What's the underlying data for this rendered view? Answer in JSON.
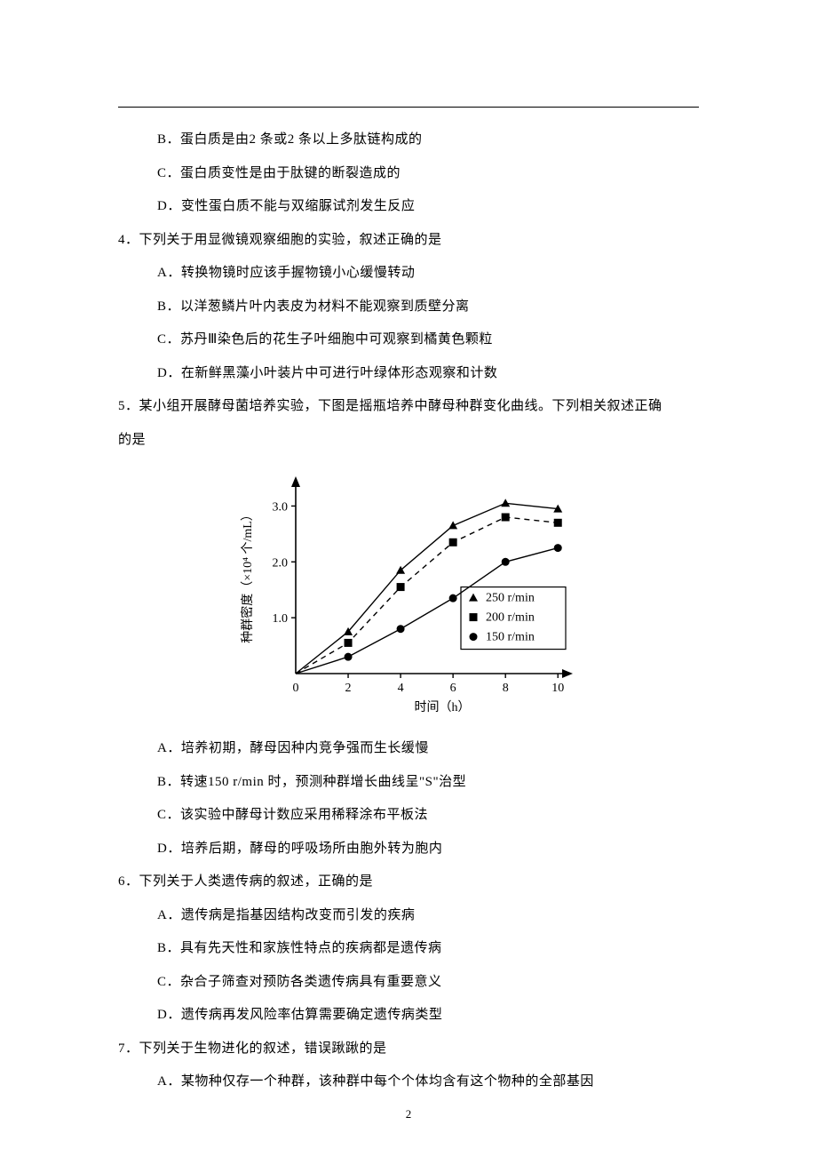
{
  "q3": {
    "options": {
      "B": "B．蛋白质是由2 条或2 条以上多肽链构成的",
      "C": "C．蛋白质变性是由于肽键的断裂造成的",
      "D": "D．变性蛋白质不能与双缩脲试剂发生反应"
    }
  },
  "q4": {
    "stem": "4．下列关于用显微镜观察细胞的实验，叙述正确的是",
    "options": {
      "A": "A．转换物镜时应该手握物镜小心缓慢转动",
      "B": "B．以洋葱鳞片叶内表皮为材料不能观察到质壁分离",
      "C": "C．苏丹Ⅲ染色后的花生子叶细胞中可观察到橘黄色颗粒",
      "D": "D．在新鲜黑藻小叶装片中可进行叶绿体形态观察和计数"
    }
  },
  "q5": {
    "stem1": "5．某小组开展酵母菌培养实验，下图是摇瓶培养中酵母种群变化曲线。下列相关叙述正确",
    "stem2": "的是",
    "options": {
      "A": "A．培养初期，酵母因种内竞争强而生长缓慢",
      "B": "B．转速150 r/min 时，预测种群增长曲线呈\"S\"治型",
      "C": "C．该实验中酵母计数应采用稀释涂布平板法",
      "D": "D．培养后期，酵母的呼吸场所由胞外转为胞内"
    }
  },
  "q6": {
    "stem": "6．下列关于人类遗传病的叙述，正确的是",
    "options": {
      "A": "A．遗传病是指基因结构改变而引发的疾病",
      "B": "B．具有先天性和家族性特点的疾病都是遗传病",
      "C": "C．杂合子筛查对预防各类遗传病具有重要意义",
      "D": "D．遗传病再发风险率估算需要确定遗传病类型"
    }
  },
  "q7": {
    "stem": "7．下列关于生物进化的叙述，错误踿踿的是",
    "options": {
      "A": "A．某物种仅存一个种群，该种群中每个个体均含有这个物种的全部基因"
    }
  },
  "chart": {
    "type": "line",
    "x_label": "时间（h）",
    "y_label": "种群密度（×10⁴ 个/mL）",
    "x_ticks": [
      0,
      2,
      4,
      6,
      8,
      10
    ],
    "y_ticks": [
      1.0,
      2.0,
      3.0
    ],
    "xlim": [
      0,
      10.5
    ],
    "ylim": [
      0,
      3.5
    ],
    "axis_color": "#000000",
    "background": "#ffffff",
    "line_width": 1.4,
    "font_size_axis": 14,
    "font_size_legend": 14,
    "legend": {
      "box_stroke": "#000000",
      "entries": [
        {
          "marker": "triangle",
          "label": "250 r/min"
        },
        {
          "marker": "square",
          "label": "200 r/min"
        },
        {
          "marker": "circle",
          "label": "150 r/min"
        }
      ]
    },
    "series": [
      {
        "name": "250 r/min",
        "marker": "triangle",
        "dash": "solid",
        "color": "#000000",
        "points": [
          {
            "x": 2,
            "y": 0.75
          },
          {
            "x": 4,
            "y": 1.85
          },
          {
            "x": 6,
            "y": 2.65
          },
          {
            "x": 8,
            "y": 3.05
          },
          {
            "x": 10,
            "y": 2.95
          }
        ]
      },
      {
        "name": "200 r/min",
        "marker": "square",
        "dash": "dashed",
        "color": "#000000",
        "points": [
          {
            "x": 2,
            "y": 0.55
          },
          {
            "x": 4,
            "y": 1.55
          },
          {
            "x": 6,
            "y": 2.35
          },
          {
            "x": 8,
            "y": 2.8
          },
          {
            "x": 10,
            "y": 2.7
          }
        ]
      },
      {
        "name": "150 r/min",
        "marker": "circle",
        "dash": "solid",
        "color": "#000000",
        "points": [
          {
            "x": 2,
            "y": 0.3
          },
          {
            "x": 4,
            "y": 0.8
          },
          {
            "x": 6,
            "y": 1.35
          },
          {
            "x": 8,
            "y": 2.0
          },
          {
            "x": 10,
            "y": 2.25
          }
        ]
      }
    ]
  },
  "page_number": "2"
}
